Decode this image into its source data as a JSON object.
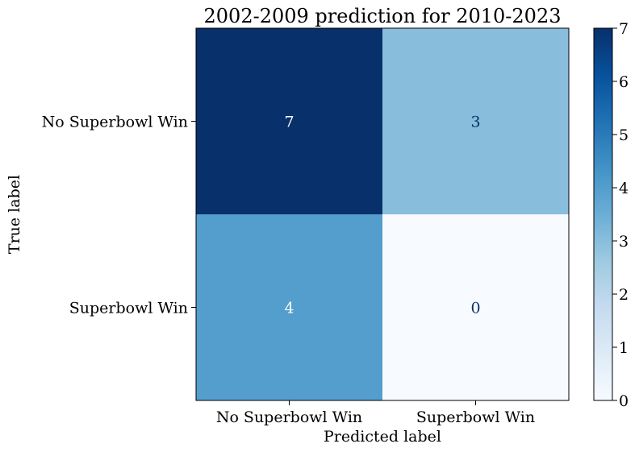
{
  "chart_data": {
    "type": "heatmap",
    "title": "2002-2009 prediction for 2010-2023",
    "xlabel": "Predicted label",
    "ylabel": "True label",
    "x_categories": [
      "No Superbowl Win",
      "Superbowl Win"
    ],
    "y_categories": [
      "No Superbowl Win",
      "Superbowl Win"
    ],
    "values": [
      [
        7,
        3
      ],
      [
        4,
        0
      ]
    ],
    "colorbar": {
      "min": 0,
      "max": 7,
      "ticks": [
        "0",
        "1",
        "2",
        "3",
        "4",
        "5",
        "6",
        "7"
      ]
    },
    "colormap": "Blues",
    "grid": false
  }
}
